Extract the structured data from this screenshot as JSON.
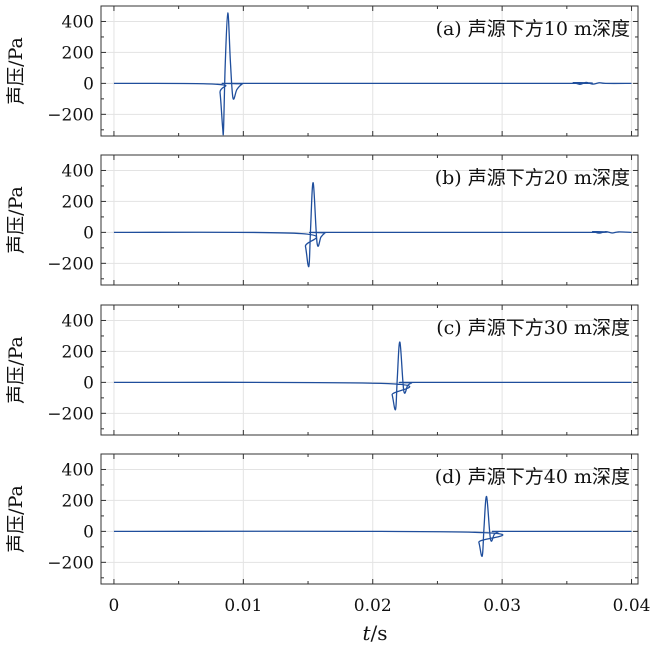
{
  "chart_data": {
    "type": "line",
    "xlabel_italic": "t",
    "xlabel_unit": "/s",
    "xlim": [
      -0.001,
      0.0405
    ],
    "xticks": [
      0,
      0.01,
      0.02,
      0.03,
      0.04
    ],
    "xtick_labels": [
      "0",
      "0.01",
      "0.02",
      "0.03",
      "0.04"
    ],
    "ylim": [
      -340,
      500
    ],
    "yticks": [
      -200,
      0,
      200,
      400
    ],
    "ytick_labels": [
      "−200",
      "0",
      "200",
      "400"
    ],
    "grid": true,
    "panels": [
      {
        "label": "(a) 声源下方10 m深度",
        "ylabel": "声压/Pa",
        "series": [
          {
            "x": [
              0,
              0.008,
              0.0082,
              0.0084,
              0.00847,
              0.0086,
              0.0088,
              0.009,
              0.0092,
              0.0095,
              0.0099,
              0.0103,
              0.035,
              0.0355,
              0.036,
              0.0365,
              0.037,
              0.0375,
              0.038,
              0.04
            ],
            "y": [
              0,
              -6,
              -60,
              -285,
              -295,
              120,
              455,
              140,
              -95,
              -40,
              -5,
              0,
              0,
              5,
              -6,
              6,
              -5,
              4,
              0,
              0
            ]
          }
        ]
      },
      {
        "label": "(b) 声源下方20 m深度",
        "ylabel": "声压/Pa",
        "series": [
          {
            "x": [
              0,
              0.0145,
              0.0148,
              0.015,
              0.0151,
              0.0152,
              0.0154,
              0.0157,
              0.016,
              0.0163,
              0.0167,
              0.0365,
              0.037,
              0.0375,
              0.038,
              0.0385,
              0.039,
              0.04
            ],
            "y": [
              0,
              -8,
              -90,
              -210,
              -190,
              30,
              320,
              -70,
              -30,
              -5,
              0,
              0,
              5,
              -5,
              5,
              -4,
              3,
              0
            ]
          }
        ]
      },
      {
        "label": "(c) 声源下方30 m深度",
        "ylabel": "声压/Pa",
        "series": [
          {
            "x": [
              0,
              0.0212,
              0.0215,
              0.0217,
              0.0218,
              0.0219,
              0.0221,
              0.0224,
              0.0227,
              0.023,
              0.0234,
              0.04
            ],
            "y": [
              0,
              -8,
              -80,
              -170,
              -150,
              30,
              260,
              -55,
              -20,
              -4,
              0,
              0
            ]
          }
        ]
      },
      {
        "label": "(d) 声源下方40 m深度",
        "ylabel": "声压/Pa",
        "series": [
          {
            "x": [
              0,
              0.0279,
              0.0282,
              0.0284,
              0.0285,
              0.0286,
              0.0288,
              0.0291,
              0.0294,
              0.0297,
              0.0301,
              0.04
            ],
            "y": [
              0,
              -6,
              -70,
              -155,
              -135,
              25,
              225,
              -50,
              -18,
              -3,
              0,
              0
            ]
          }
        ]
      }
    ]
  }
}
